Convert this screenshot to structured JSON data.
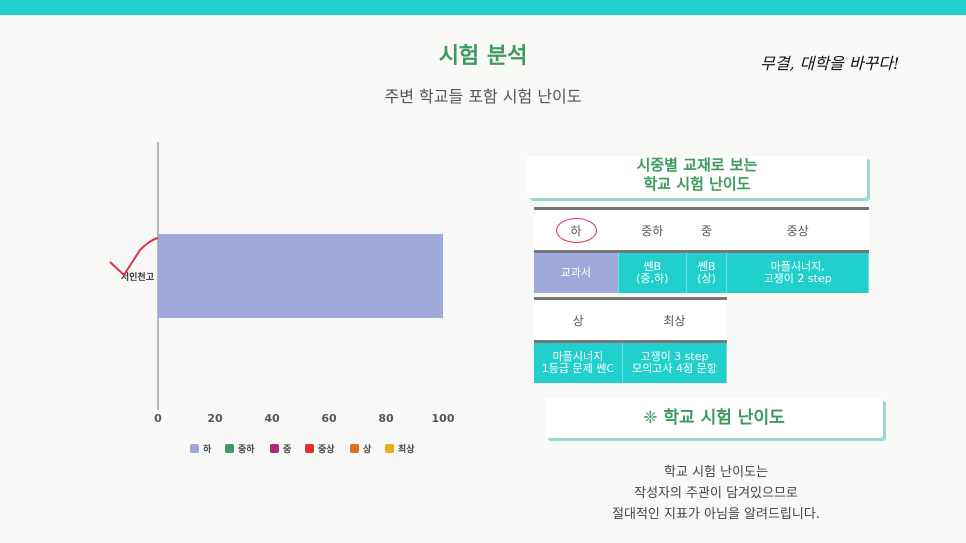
{
  "header": {
    "title": "시험 분석",
    "subtitle": "주변 학교들 포함 시험 난이도",
    "slogan": "무결, 대학을 바꾸다!"
  },
  "chart_data": {
    "type": "bar",
    "orientation": "horizontal",
    "categories": [
      "서인천고"
    ],
    "series": [
      {
        "name": "하",
        "values": [
          100
        ],
        "color": "#9fa9d9"
      },
      {
        "name": "중하",
        "values": [
          0
        ],
        "color": "#3d9a5c"
      },
      {
        "name": "중",
        "values": [
          0
        ],
        "color": "#b0287a"
      },
      {
        "name": "중상",
        "values": [
          0
        ],
        "color": "#e03030"
      },
      {
        "name": "상",
        "values": [
          0
        ],
        "color": "#e07020"
      },
      {
        "name": "최상",
        "values": [
          0
        ],
        "color": "#e8b020"
      }
    ],
    "xlim": [
      0,
      100
    ],
    "xticks": [
      0,
      20,
      40,
      60,
      80,
      100
    ],
    "legend_position": "bottom",
    "grid": false
  },
  "card1": {
    "line1": "시중별 교재로 보는",
    "line2": "학교 시험 난이도"
  },
  "table1": {
    "headers": [
      "하",
      "중하",
      "중",
      "중상"
    ],
    "row": [
      {
        "text": "교과서"
      },
      {
        "line1": "쎈B",
        "line2": "(중,하)"
      },
      {
        "line1": "쎈B",
        "line2": "(상)"
      },
      {
        "line1": "마플시너지,",
        "line2": "고쟁이 2 step"
      }
    ]
  },
  "table2": {
    "headers": [
      "상",
      "최상"
    ],
    "row": [
      {
        "line1": "마플시너지",
        "line2": "1등급 문제 쎈C"
      },
      {
        "line1": "고쟁이 3 step",
        "line2": "모의고사 4점 문항"
      }
    ]
  },
  "card2": {
    "text": "❈ 학교 시험 난이도"
  },
  "notes": {
    "line1": "학교 시험 난이도는",
    "line2": "작성자의 주관이 담겨있으므로",
    "line3": "절대적인 지표가 아님을 알려드립니다."
  }
}
